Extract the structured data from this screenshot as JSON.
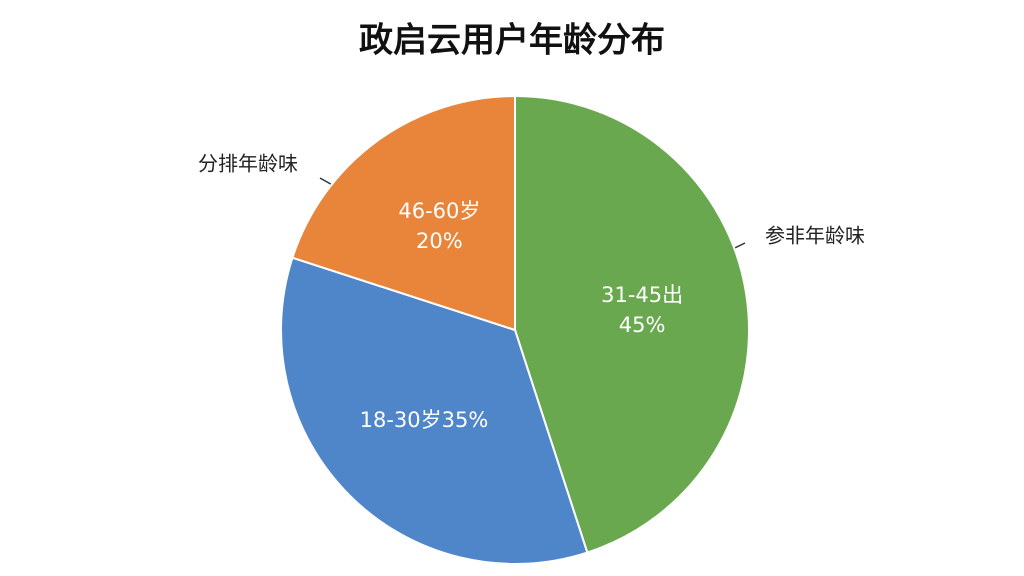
{
  "chart_data": {
    "type": "pie",
    "title": "政启云用户年龄分布",
    "categories": [
      "31-45出",
      "18-30岁",
      "46-60岁"
    ],
    "values": [
      45,
      35,
      20
    ],
    "value_labels": [
      "45%",
      "35%",
      "20%"
    ],
    "colors": [
      "#6aa84f",
      "#4f86c9",
      "#e8853b"
    ],
    "annotations": [
      "分排年龄味",
      "参非年龄味"
    ]
  }
}
